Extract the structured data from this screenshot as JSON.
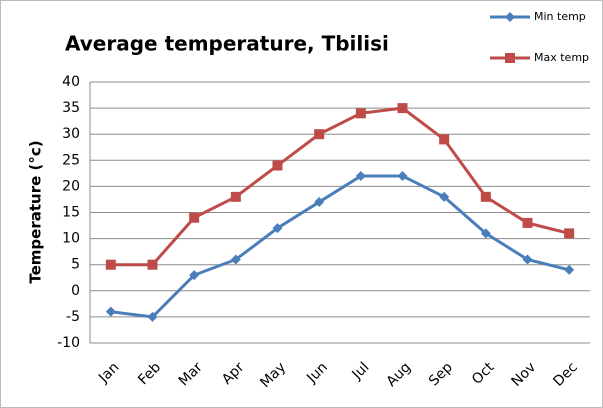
{
  "chart_data": {
    "type": "line",
    "title": "Average temperature, Tbilisi",
    "y_label": "Temperature (°c)",
    "categories": [
      "Jan",
      "Feb",
      "Mar",
      "Apr",
      "May",
      "Jun",
      "Jul",
      "Aug",
      "Sep",
      "Oct",
      "Nov",
      "Dec"
    ],
    "series": [
      {
        "name": "Min temp",
        "color": "#4a7ebb",
        "marker": "diamond",
        "values": [
          -4,
          -5,
          3,
          6,
          12,
          17,
          22,
          22,
          18,
          11,
          6,
          4
        ]
      },
      {
        "name": "Max temp",
        "color": "#be4b48",
        "marker": "square",
        "values": [
          5,
          5,
          14,
          18,
          24,
          30,
          34,
          35,
          29,
          18,
          13,
          11
        ]
      }
    ],
    "ylim": [
      -10,
      40
    ],
    "yticks": [
      -10,
      -5,
      0,
      5,
      10,
      15,
      20,
      25,
      30,
      35,
      40
    ],
    "grid": true,
    "legend": "top-right"
  }
}
